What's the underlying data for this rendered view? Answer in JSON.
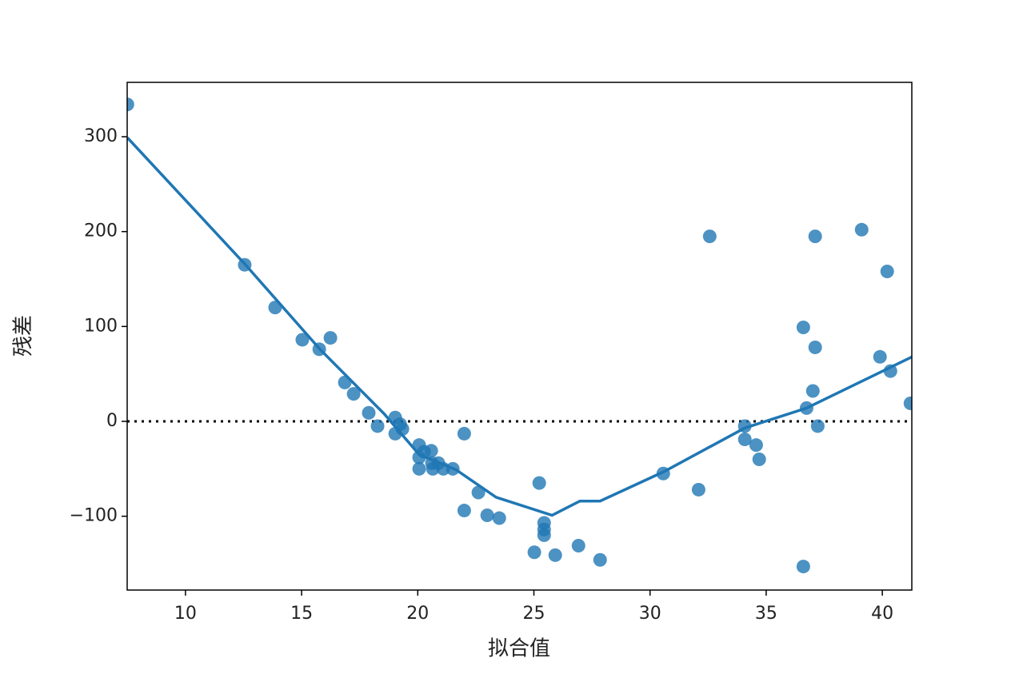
{
  "chart_data": {
    "type": "scatter",
    "xlabel": "拟合值",
    "ylabel": "残差",
    "x": [
      7.5,
      12.55,
      13.86,
      15.03,
      15.76,
      16.24,
      16.86,
      17.24,
      17.89,
      18.27,
      19.03,
      19.03,
      19.24,
      19.34,
      20.06,
      20.06,
      20.06,
      20.27,
      20.58,
      20.61,
      20.65,
      20.89,
      21.1,
      21.51,
      22.0,
      22.0,
      22.61,
      22.99,
      23.51,
      25.02,
      25.23,
      25.44,
      25.44,
      25.44,
      25.92,
      26.92,
      27.85,
      30.57,
      32.09,
      32.57,
      34.08,
      34.08,
      34.57,
      34.7,
      36.6,
      36.6,
      36.74,
      37.01,
      37.11,
      37.11,
      37.22,
      39.11,
      39.9,
      40.21,
      40.35,
      41.21
    ],
    "values": [
      334,
      165,
      120,
      86,
      76,
      88,
      41,
      29,
      9,
      -5,
      4,
      -13,
      -3,
      -8,
      -25,
      -38,
      -50,
      -32,
      -31,
      -44,
      -50,
      -44,
      -50,
      -50,
      -13,
      -94,
      -75,
      -99,
      -102,
      -138,
      -65,
      -107,
      -114,
      -120,
      -141,
      -131,
      -146,
      -55,
      -72,
      195,
      -5,
      -19,
      -25,
      -40,
      99,
      -153,
      14,
      32,
      78,
      195,
      -5,
      202,
      68,
      158,
      53,
      19
    ],
    "color": "#1f77b4",
    "fit_line": {
      "x": [
        7.5,
        12.55,
        15.79,
        18.55,
        20.06,
        21.65,
        23.37,
        25.78,
        26.98,
        27.85,
        30.6,
        34.08,
        36.74,
        41.28
      ],
      "values": [
        299,
        166,
        76,
        8,
        -35,
        -51,
        -80,
        -99,
        -84,
        -84,
        -53,
        -7,
        14,
        68
      ],
      "color": "#1f77b4"
    },
    "hline": 0,
    "xlim": [
      7.49,
      41.27
    ],
    "ylim": [
      -177.8,
      357.3
    ],
    "xticks": [
      10,
      15,
      20,
      25,
      30,
      35,
      40
    ],
    "yticks": [
      {
        "value": -100,
        "label": "−100"
      },
      0,
      100,
      200,
      300
    ]
  }
}
